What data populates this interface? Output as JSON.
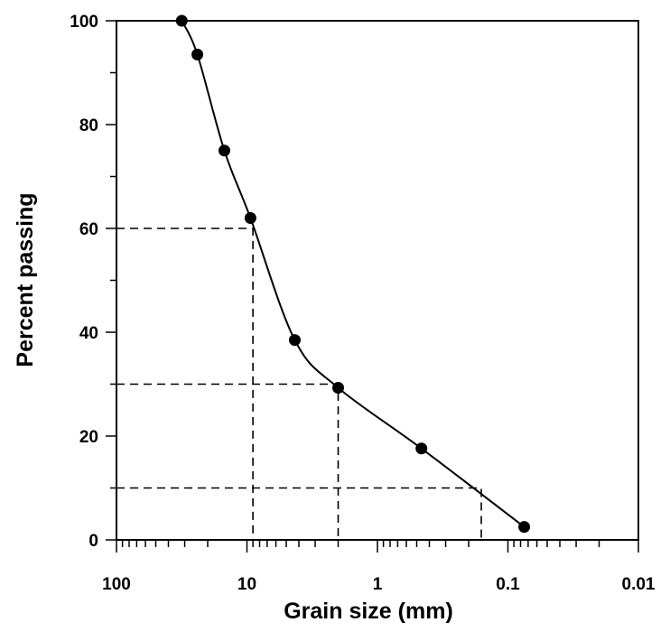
{
  "chart_data": {
    "type": "line",
    "x_scale": "log",
    "x_reversed": true,
    "xlim": [
      100,
      0.01
    ],
    "ylim": [
      0,
      100
    ],
    "xlabel": "Grain size (mm)",
    "ylabel": "Percent passing",
    "x_tick_labels": [
      "100",
      "10",
      "1",
      "0.1",
      "0.01"
    ],
    "y_tick_labels": [
      "0",
      "20",
      "40",
      "60",
      "80",
      "100"
    ],
    "grid": false,
    "legend": null,
    "series": [
      {
        "marker": "circle",
        "color": "#000000",
        "points": [
          {
            "x": 31.6,
            "y": 100
          },
          {
            "x": 24.0,
            "y": 93.5
          },
          {
            "x": 14.9,
            "y": 75
          },
          {
            "x": 9.4,
            "y": 62
          },
          {
            "x": 4.3,
            "y": 38.5
          },
          {
            "x": 2.0,
            "y": 29.3
          },
          {
            "x": 0.46,
            "y": 17.6
          },
          {
            "x": 0.075,
            "y": 2.5
          }
        ]
      }
    ],
    "reference_lines": [
      {
        "y": 60,
        "x": 9.0
      },
      {
        "y": 30,
        "x": 2.0
      },
      {
        "y": 10,
        "x": 0.16
      }
    ]
  }
}
